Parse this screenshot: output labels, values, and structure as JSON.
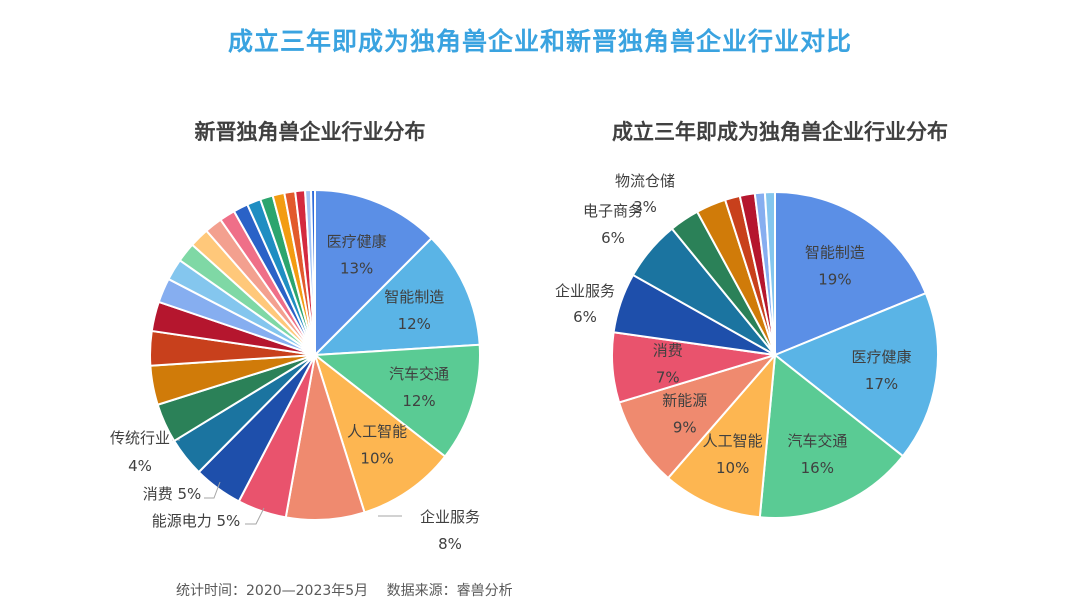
{
  "header": {
    "main_title": "成立三年即成为独角兽企业和新晋独角兽企业行业对比"
  },
  "footer": {
    "stat_time": "统计时间：2020—2023年5月",
    "source": "数据来源：睿兽分析"
  },
  "chart_data": [
    {
      "type": "pie",
      "title": "新晋独角兽企业行业分布",
      "slices": [
        {
          "label": "医疗健康",
          "value": 13,
          "display": "13%",
          "color": "#5b8fe6",
          "label_pos": "inside"
        },
        {
          "label": "智能制造",
          "value": 12,
          "display": "12%",
          "color": "#5ab4e6",
          "label_pos": "inside"
        },
        {
          "label": "汽车交通",
          "value": 12,
          "display": "12%",
          "color": "#5acb94",
          "label_pos": "inside"
        },
        {
          "label": "人工智能",
          "value": 10,
          "display": "10%",
          "color": "#fdb651",
          "label_pos": "inside"
        },
        {
          "label": "企业服务",
          "value": 8,
          "display": "8%",
          "color": "#ef8a6f",
          "label_pos": "outside"
        },
        {
          "label": "能源电力",
          "value": 5,
          "display": "5%",
          "color": "#e9536d",
          "label_pos": "outside"
        },
        {
          "label": "消费",
          "value": 5,
          "display": "5%",
          "color": "#1e4fab",
          "label_pos": "outside"
        },
        {
          "label": "传统行业",
          "value": 4,
          "display": "4%",
          "color": "#1b74a0",
          "label_pos": "outside"
        },
        {
          "label": "",
          "value": 4,
          "color": "#2b8158"
        },
        {
          "label": "",
          "value": 4,
          "color": "#d07b09"
        },
        {
          "label": "",
          "value": 3.5,
          "color": "#c8401c"
        },
        {
          "label": "",
          "value": 3,
          "color": "#b5162e"
        },
        {
          "label": "",
          "value": 2.5,
          "color": "#86aef0"
        },
        {
          "label": "",
          "value": 2.2,
          "color": "#84c6ee"
        },
        {
          "label": "",
          "value": 2,
          "color": "#7fd8a5"
        },
        {
          "label": "",
          "value": 2,
          "color": "#ffc87a"
        },
        {
          "label": "",
          "value": 1.8,
          "color": "#f3a08f"
        },
        {
          "label": "",
          "value": 1.6,
          "color": "#ef6f88"
        },
        {
          "label": "",
          "value": 1.5,
          "color": "#2a62c7"
        },
        {
          "label": "",
          "value": 1.4,
          "color": "#1f8ec2"
        },
        {
          "label": "",
          "value": 1.3,
          "color": "#2ca56e"
        },
        {
          "label": "",
          "value": 1.2,
          "color": "#f39c12"
        },
        {
          "label": "",
          "value": 1.1,
          "color": "#e25a2c"
        },
        {
          "label": "",
          "value": 1.0,
          "color": "#d42a3f"
        },
        {
          "label": "",
          "value": 0.6,
          "color": "#a3c4f5"
        },
        {
          "label": "",
          "value": 0.4,
          "color": "#2f6bd9"
        }
      ]
    },
    {
      "type": "pie",
      "title": "成立三年即成为独角兽企业行业分布",
      "slices": [
        {
          "label": "智能制造",
          "value": 19,
          "display": "19%",
          "color": "#5b8fe6",
          "label_pos": "inside"
        },
        {
          "label": "医疗健康",
          "value": 17,
          "display": "17%",
          "color": "#5ab4e6",
          "label_pos": "inside"
        },
        {
          "label": "汽车交通",
          "value": 16,
          "display": "16%",
          "color": "#5acb94",
          "label_pos": "inside"
        },
        {
          "label": "人工智能",
          "value": 10,
          "display": "10%",
          "color": "#fdb651",
          "label_pos": "inside"
        },
        {
          "label": "新能源",
          "value": 9,
          "display": "9%",
          "color": "#ef8a6f",
          "label_pos": "inside"
        },
        {
          "label": "消费",
          "value": 7,
          "display": "7%",
          "color": "#e9536d",
          "label_pos": "inside"
        },
        {
          "label": "企业服务",
          "value": 6,
          "display": "6%",
          "color": "#1e4fab",
          "label_pos": "outside"
        },
        {
          "label": "电子商务",
          "value": 6,
          "display": "6%",
          "color": "#1b74a0",
          "label_pos": "outside"
        },
        {
          "label": "物流仓储",
          "value": 3,
          "display": "3%",
          "color": "#2b8158",
          "label_pos": "outside"
        },
        {
          "label": "",
          "value": 3,
          "color": "#d07b09"
        },
        {
          "label": "",
          "value": 1.5,
          "color": "#c8401c"
        },
        {
          "label": "",
          "value": 1.5,
          "color": "#b5162e"
        },
        {
          "label": "",
          "value": 1,
          "color": "#86aef0"
        },
        {
          "label": "",
          "value": 1,
          "color": "#84c6ee"
        }
      ]
    }
  ]
}
